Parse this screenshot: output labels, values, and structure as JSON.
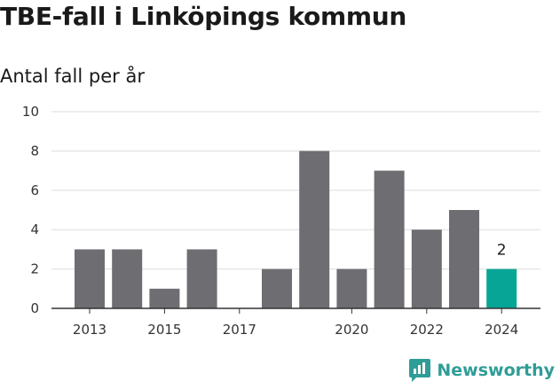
{
  "title": "TBE-fall i Linköpings kommun",
  "subtitle": "Antal fall per år",
  "brand": {
    "name": "Newsworthy",
    "icon": "newsworthy-logo-icon",
    "color": "#2f9d97"
  },
  "colors": {
    "bar": "#6e6d72",
    "highlight": "#07a595",
    "grid": "#dddddd",
    "axis": "#333333"
  },
  "chart_data": {
    "type": "bar",
    "categories": [
      "2013",
      "2014",
      "2015",
      "2016",
      "2017",
      "2018",
      "2019",
      "2020",
      "2021",
      "2022",
      "2023",
      "2024"
    ],
    "values": [
      3,
      3,
      1,
      3,
      0,
      2,
      8,
      2,
      7,
      4,
      5,
      2
    ],
    "x_tick_labels": [
      "2013",
      "2015",
      "2017",
      "2020",
      "2022",
      "2024"
    ],
    "y_ticks": [
      0,
      2,
      4,
      6,
      8,
      10
    ],
    "ylim": [
      0,
      10
    ],
    "highlight_index": 11,
    "data_labels": [
      {
        "index": 11,
        "text": "2"
      }
    ],
    "grid": true,
    "legend": "none"
  }
}
